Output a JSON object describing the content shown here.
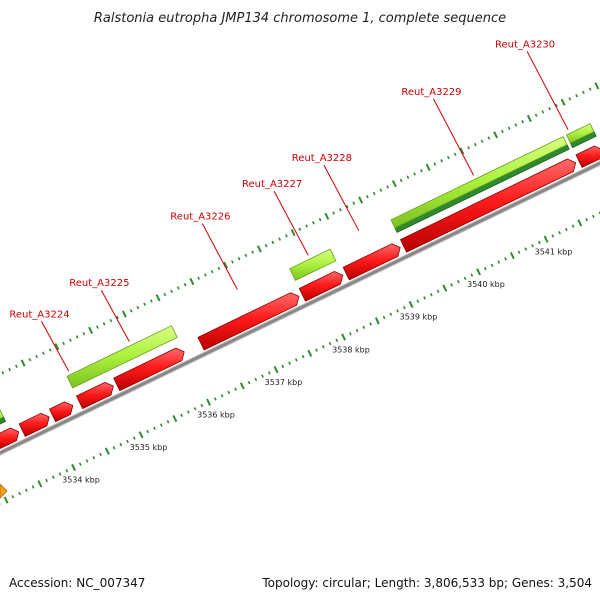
{
  "title": "Ralstonia eutropha JMP134 chromosome 1, complete sequence",
  "footer": {
    "accession": "Accession: NC_007347",
    "summary": "Topology: circular; Length: 3,806,533 bp; Genes: 3,504"
  },
  "colors": {
    "cds": "#ff1a1a",
    "gene": "#aaf03c",
    "gene_dark": "#2e8a2e",
    "backbone": "#888888",
    "tick": "#2e8b2e",
    "label": "#cc0000",
    "marker": "#f0a020"
  },
  "chart_data": {
    "type": "genome-map",
    "scale_unit": "kbp",
    "visible_range_kbp": [
      3533.2,
      3542.1
    ],
    "tick_labels": [
      {
        "kbp": 3534,
        "text": "3534 kbp"
      },
      {
        "kbp": 3535,
        "text": "3535 kbp"
      },
      {
        "kbp": 3536,
        "text": "3536 kbp"
      },
      {
        "kbp": 3537,
        "text": "3537 kbp"
      },
      {
        "kbp": 3538,
        "text": "3538 kbp"
      },
      {
        "kbp": 3539,
        "text": "3539 kbp"
      },
      {
        "kbp": 3540,
        "text": "3540 kbp"
      },
      {
        "kbp": 3541,
        "text": "3541 kbp"
      }
    ],
    "cds_features": [
      {
        "start_kbp": 3533.2,
        "end_kbp": 3533.55
      },
      {
        "start_kbp": 3533.6,
        "end_kbp": 3534.0
      },
      {
        "start_kbp": 3534.05,
        "end_kbp": 3534.35
      },
      {
        "start_kbp": 3534.45,
        "end_kbp": 3534.95
      },
      {
        "start_kbp": 3535.0,
        "end_kbp": 3536.0
      },
      {
        "start_kbp": 3536.25,
        "end_kbp": 3537.7
      },
      {
        "start_kbp": 3537.75,
        "end_kbp": 3538.35
      },
      {
        "start_kbp": 3538.4,
        "end_kbp": 3539.2
      },
      {
        "start_kbp": 3539.25,
        "end_kbp": 3541.8
      },
      {
        "start_kbp": 3541.85,
        "end_kbp": 3542.2
      }
    ],
    "gene_features": [
      {
        "start_kbp": 3533.2,
        "end_kbp": 3533.45,
        "band": "dark"
      },
      {
        "start_kbp": 3534.45,
        "end_kbp": 3536.0,
        "band": "light"
      },
      {
        "start_kbp": 3537.75,
        "end_kbp": 3538.35,
        "band": "light"
      },
      {
        "start_kbp": 3539.25,
        "end_kbp": 3541.8,
        "band": "dark"
      },
      {
        "start_kbp": 3541.85,
        "end_kbp": 3542.2,
        "band": "dark"
      }
    ],
    "gene_labels": [
      {
        "text": "Reut_A3224",
        "kbp": 3534.5
      },
      {
        "text": "Reut_A3225",
        "kbp": 3535.4
      },
      {
        "text": "Reut_A3226",
        "kbp": 3537.0
      },
      {
        "text": "Reut_A3227",
        "kbp": 3538.05
      },
      {
        "text": "Reut_A3228",
        "kbp": 3538.8
      },
      {
        "text": "Reut_A3229",
        "kbp": 3540.5
      },
      {
        "text": "Reut_A3230",
        "kbp": 3541.9
      }
    ]
  }
}
